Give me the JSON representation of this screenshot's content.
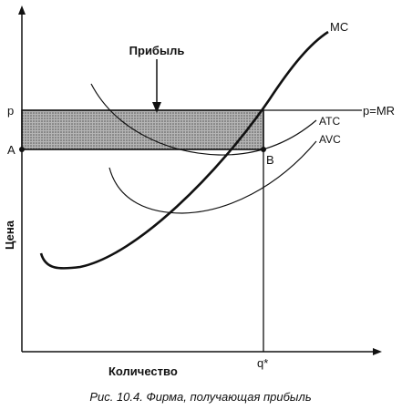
{
  "chart_data": {
    "type": "line",
    "title": "",
    "caption": "Рис. 10.4. Фирма, получающая прибыль",
    "xlabel": "Количество",
    "ylabel": "Цена",
    "x_tick_labels": [
      "q*"
    ],
    "y_tick_labels": [
      "p",
      "A"
    ],
    "point_labels": [
      "B"
    ],
    "annotations": [
      {
        "text": "Прибыль",
        "points_to": "shaded profit rectangle"
      }
    ],
    "grid": false,
    "legend": "none",
    "shaded_region": {
      "name": "Прибыль",
      "x_range": [
        "0",
        "q*"
      ],
      "y_range": [
        "A",
        "p"
      ]
    },
    "series": [
      {
        "name": "MC",
        "shape": "upward-sloping, U at low output"
      },
      {
        "name": "ATC",
        "shape": "U-shaped, minimum near q*"
      },
      {
        "name": "AVC",
        "shape": "U-shaped, below ATC"
      },
      {
        "name": "p=MR",
        "shape": "horizontal line at price p"
      }
    ],
    "colors": {
      "lines": "#111111",
      "shading": "#9a9a9a"
    }
  }
}
